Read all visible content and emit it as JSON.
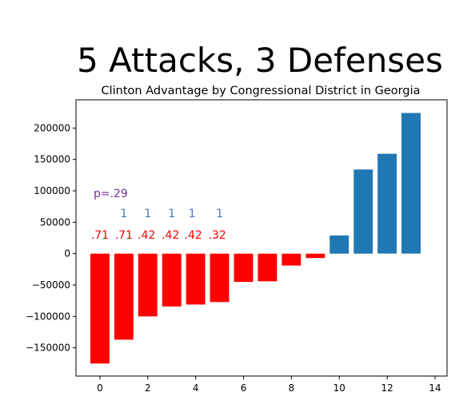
{
  "slide_title": "5 Attacks, 3 Defenses",
  "chart_data": {
    "type": "bar",
    "title": "Clinton Advantage by Congressional District in Georgia",
    "xlabel": "",
    "ylabel": "",
    "x": [
      0,
      1,
      2,
      3,
      4,
      5,
      6,
      7,
      8,
      9,
      10,
      11,
      12,
      13
    ],
    "values": [
      -175000,
      -137000,
      -100000,
      -84000,
      -81000,
      -77000,
      -45000,
      -44000,
      -19000,
      -7000,
      29000,
      134000,
      159000,
      224000
    ],
    "colors": [
      "#ff0000",
      "#ff0000",
      "#ff0000",
      "#ff0000",
      "#ff0000",
      "#ff0000",
      "#ff0000",
      "#ff0000",
      "#ff0000",
      "#ff0000",
      "#1f77b4",
      "#1f77b4",
      "#1f77b4",
      "#1f77b4"
    ],
    "xlim": [
      -1,
      14.5
    ],
    "ylim": [
      -195000,
      245000
    ],
    "xticks": [
      0,
      2,
      4,
      6,
      8,
      10,
      12,
      14
    ],
    "yticks": [
      -150000,
      -100000,
      -50000,
      0,
      50000,
      100000,
      150000,
      200000
    ],
    "ytick_labels": [
      "−150000",
      "−100000",
      "−50000",
      "0",
      "50000",
      "100000",
      "150000",
      "200000"
    ],
    "grid": false,
    "annotations": {
      "p_value": {
        "text": "p=.29",
        "x": 0.45,
        "y": 90000,
        "color": "#7030a0"
      },
      "blue_ones": [
        {
          "text": "1",
          "x": 1.0,
          "y": 58000
        },
        {
          "text": "1",
          "x": 2.0,
          "y": 58000
        },
        {
          "text": "1",
          "x": 3.0,
          "y": 58000
        },
        {
          "text": "1",
          "x": 3.85,
          "y": 58000
        },
        {
          "text": "1",
          "x": 5.0,
          "y": 58000
        }
      ],
      "blue_color": "#4472c4",
      "red_values": [
        {
          "text": ".71",
          "x": 0.0,
          "y": 24000
        },
        {
          "text": ".71",
          "x": 1.0,
          "y": 24000
        },
        {
          "text": ".42",
          "x": 1.95,
          "y": 24000
        },
        {
          "text": ".42",
          "x": 2.95,
          "y": 24000
        },
        {
          "text": ".42",
          "x": 3.9,
          "y": 24000
        },
        {
          "text": ".32",
          "x": 4.9,
          "y": 24000
        }
      ],
      "red_color": "#ff0000"
    }
  }
}
